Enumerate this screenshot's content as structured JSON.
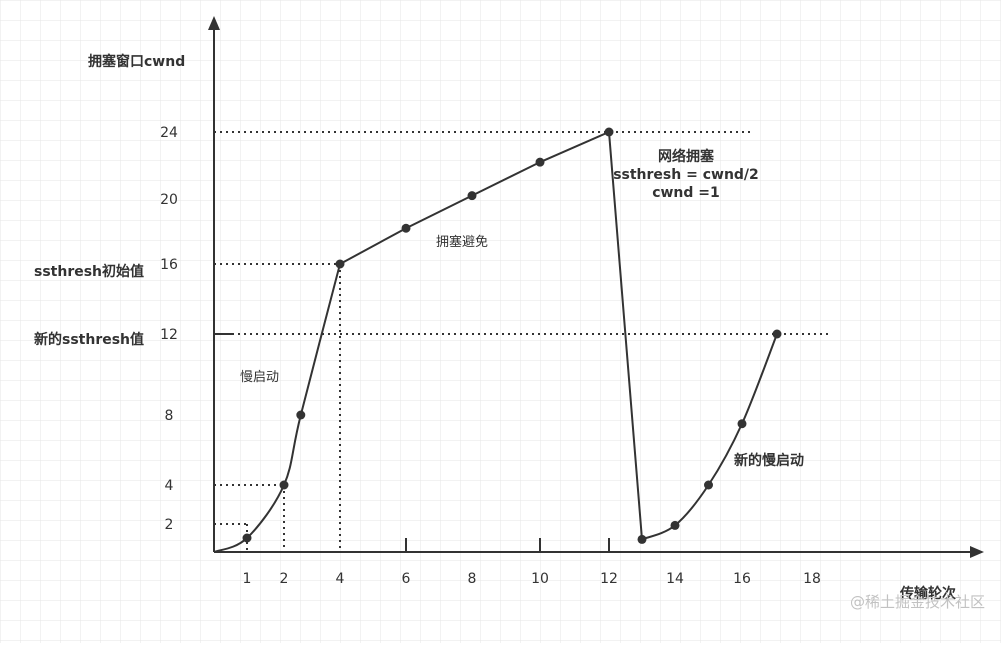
{
  "chart_data": {
    "type": "line",
    "title": "",
    "ylabel": "拥塞窗口cwnd",
    "xlabel": "传输轮次",
    "x_ticks": [
      1,
      2,
      4,
      6,
      8,
      10,
      12,
      14,
      16,
      18
    ],
    "y_ticks": [
      2,
      4,
      8,
      12,
      16,
      20,
      24
    ],
    "series": [
      {
        "points": [
          [
            0,
            0
          ],
          [
            1,
            1
          ],
          [
            2,
            4
          ],
          [
            2.6,
            8
          ],
          [
            4,
            16
          ],
          [
            6,
            18.2
          ],
          [
            8,
            20.2
          ],
          [
            10,
            22.2
          ],
          [
            12,
            24
          ],
          [
            13,
            0.9
          ],
          [
            14,
            1.9
          ],
          [
            15,
            4
          ],
          [
            16,
            7.5
          ],
          [
            17,
            12
          ]
        ]
      }
    ],
    "annotations": {
      "ssthresh_initial": "ssthresh初始值",
      "ssthresh_new": "新的ssthresh值",
      "slow_start": "慢启动",
      "congestion_avoidance": "拥塞避免",
      "congestion_line1": "网络拥塞",
      "congestion_line2": "ssthresh = cwnd/2",
      "congestion_line3": "cwnd =1",
      "new_slow_start": "新的慢启动"
    }
  },
  "watermark": "@稀土掘金技术社区"
}
